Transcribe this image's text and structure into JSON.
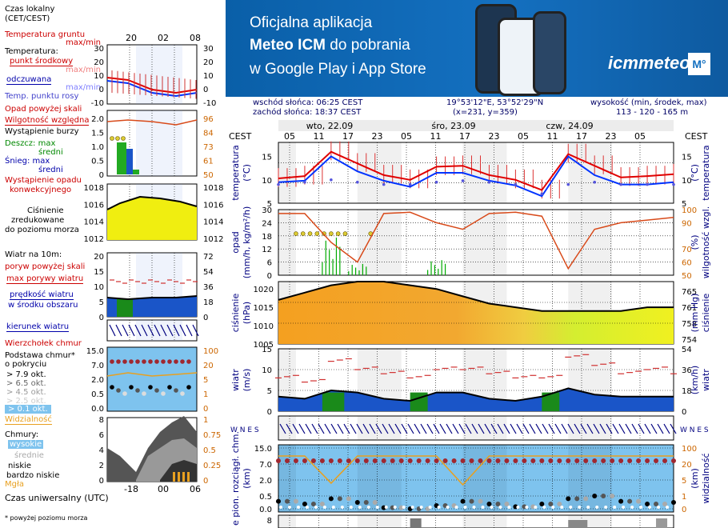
{
  "legend": {
    "czas_lokalny": "Czas lokalny",
    "cet_cest": "(CET/CEST)",
    "temp_gruntu": "Temperatura gruntu",
    "max_min": "max/min",
    "temperatura": "Temperatura:",
    "punkt_srodkowy": "punkt środkowy",
    "max_min2": "max/min",
    "odczuwana": "odczuwana",
    "max_min3": "max/min",
    "temp_punktu_rosy": "Temp. punktu rosy",
    "opad": "Opad powyżej skali",
    "wilgotnosc": "Wilgotność względna",
    "wystapienie_burzy": "Wystąpienie burzy",
    "deszcz_max": "Deszcz: max",
    "sredni": "średni",
    "snieg_max": "Śnieg:   max",
    "sredni2": "średni",
    "wystapienie_opadu": "Wystąpienie opadu",
    "konwekcyjnego": "konwekcyjnego",
    "cisnienie1": "Ciśnienie",
    "cisnienie2": "zredukowane",
    "cisnienie3": "do poziomu morza",
    "wiatr_10m": "Wiatr na 10m:",
    "poryw_powyzej": "poryw powyżej skali",
    "max_porywy": "max porywy wiatru",
    "predkosc1": "prędkość wiatru",
    "predkosc2": "w środku obszaru",
    "kierunek": "kierunek wiatru",
    "wierzcholek": "Wierzchołek chmur",
    "podstawa1": "Podstawa chmur*",
    "podstawa2": "o pokryciu",
    "okt79": "> 7.9 okt.",
    "okt65": "> 6.5 okt.",
    "okt45": "> 4.5 okt.",
    "okt25": "> 2.5 okt.",
    "okt01": "> 0.1 okt.",
    "widzialnosc": "Widzialność",
    "chmury": "Chmury:",
    "wysokie": "wysokie",
    "srednie": "średnie",
    "niskie": "niskie",
    "bardzo_niskie": "bardzo niskie",
    "mgla": "Mgła",
    "czas_uniwersalny": "Czas uniwersalny (UTC)",
    "powyzej_poziomu": "* powyżej poziomu morza"
  },
  "banner": {
    "line1": "Oficjalna aplikacja",
    "line2a": "Meteo ICM",
    "line2b": " do pobrania",
    "line3": "w Google Play i App Store",
    "logo": "icmmeteo",
    "logo_badge": "M°"
  },
  "info": {
    "sunrise": "wschód słońca: 06:25 CEST",
    "sunset": "zachód słońca: 18:37 CEST",
    "coords": "19°53'12\"E, 53°52'29\"N",
    "grid": "(x=231,  y=359)",
    "height_label": "wysokość (min, środek, max)",
    "height_values": "113 - 120 - 165 m"
  },
  "days": [
    "wto, 22.09",
    "śro, 23.09",
    "czw, 24.09"
  ],
  "tz": "CEST",
  "local_hours": [
    "05",
    "11",
    "17",
    "23",
    "05",
    "11",
    "17",
    "23",
    "05",
    "11",
    "17",
    "23",
    "05"
  ],
  "legend_local_hours": [
    "20",
    "02",
    "08"
  ],
  "legend_utc_hours": [
    "-18",
    "00",
    "06"
  ],
  "axis_titles": {
    "temperature": "temperatura",
    "temperature_unit": "(°C)",
    "precip": "opad",
    "precip_unit": "(mm/h, kg/m²/h)",
    "humidity_unit": "(%)",
    "humidity": "wilgotność wzgl.",
    "pressure": "ciśnienie",
    "pressure_unit": "(hPa)",
    "pressure_unit_r": "(mm Hg)",
    "wind": "wiatr",
    "wind_unit": "(m/s)",
    "wind_unit_r": "(km/h)",
    "cloud_left": "e pion. rozciągł. chm.",
    "cloud_unit": "(km)",
    "visibility": "widzialność",
    "vis_unit": "(km)",
    "compass": "W N E S"
  },
  "ticks": {
    "temp_left": [
      "15",
      "10",
      "5"
    ],
    "temp_right": [
      "15",
      "10",
      "5"
    ],
    "precip_left": [
      "30",
      "24",
      "18",
      "12",
      "6",
      "0"
    ],
    "precip_right": [
      "100",
      "90",
      "70",
      "60",
      "50"
    ],
    "press_left": [
      "1020",
      "1015",
      "1010",
      "1005"
    ],
    "press_right": [
      "765",
      "761",
      "758",
      "754"
    ],
    "wind_left": [
      "15",
      "10",
      "5",
      "0"
    ],
    "wind_right": [
      "54",
      "36",
      "18",
      "0"
    ],
    "cloud_left": [
      "15.0",
      "7.0",
      "2.0",
      "0.5",
      "0.0"
    ],
    "cloud_right": [
      "100",
      "20",
      "5",
      "1",
      "0"
    ],
    "bottom_left": [
      "8"
    ],
    "legend_temp_left": [
      "30",
      "20",
      "10",
      "0",
      "-10"
    ],
    "legend_temp_right": [
      "30",
      "20",
      "10",
      "0",
      "-10"
    ],
    "legend_precip_left": [
      "2.0",
      "1.5",
      "1.0",
      "0.5",
      "0"
    ],
    "legend_precip_right": [
      "96",
      "84",
      "73",
      "61",
      "50"
    ],
    "legend_press_left": [
      "1018",
      "1016",
      "1014",
      "1012"
    ],
    "legend_press_right": [
      "1018",
      "1016",
      "1014",
      "1012"
    ],
    "legend_wind_left": [
      "20",
      "15",
      "10",
      "5",
      "0"
    ],
    "legend_wind_right": [
      "72",
      "54",
      "36",
      "18",
      "0"
    ],
    "legend_cloud_left": [
      "15.0",
      "7.0",
      "2.0",
      "0.5",
      "0.0"
    ],
    "legend_cloud_right": [
      "100",
      "20",
      "5",
      "1",
      "0"
    ],
    "legend_clouds_left": [
      "8",
      "6",
      "4",
      "2",
      "0"
    ],
    "legend_clouds_right": [
      "1",
      "0.75",
      "0.5",
      "0.25",
      "0"
    ]
  },
  "colors": {
    "temp": "#e00000",
    "feel": "#0033ff",
    "dew": "#5555dd",
    "humidity": "#d84a1a",
    "rain": "#00aa00",
    "pressure_fill": "#f0a020",
    "wind_fill": "#1a55c8",
    "wind_green": "#1a8a1a",
    "gust": "#d03030",
    "cloud_bg": "#7ec3ee",
    "vis": "#e8a020"
  },
  "chart_data": [
    {
      "type": "line",
      "name": "temperatura",
      "x_hours_from_start": [
        0,
        6,
        12,
        18,
        24,
        30,
        36,
        42,
        48,
        54,
        60,
        66,
        72,
        78,
        84,
        90
      ],
      "series": [
        {
          "name": "punkt środkowy",
          "values": [
            10.3,
            10.8,
            16.0,
            13.5,
            11.0,
            10.0,
            12.8,
            13.0,
            11.0,
            10.0,
            7.8,
            15.5,
            13.0,
            10.5,
            10.8,
            11.2
          ]
        },
        {
          "name": "odczuwana",
          "values": [
            9.5,
            9.8,
            15.0,
            11.8,
            9.8,
            8.5,
            11.5,
            11.5,
            9.8,
            8.8,
            6.5,
            15.0,
            11.0,
            9.0,
            9.0,
            9.5
          ]
        },
        {
          "name": "Temp. punktu rosy",
          "values": [
            9.0,
            9.5,
            10.0,
            9.5,
            9.0,
            9.0,
            9.5,
            9.8,
            9.5,
            9.0,
            7.0,
            9.0,
            9.5,
            9.0,
            9.0,
            9.0
          ]
        }
      ],
      "ylim": [
        5,
        18
      ]
    },
    {
      "type": "bar",
      "name": "opad i wilgotność",
      "humidity_values": [
        97,
        97,
        75,
        60,
        97,
        98,
        90,
        85,
        97,
        98,
        95,
        55,
        85,
        90,
        92,
        94
      ],
      "rain_max_values": [
        0,
        0,
        20,
        6,
        0,
        0,
        8,
        0,
        0,
        0,
        0,
        0,
        0,
        0,
        0,
        0
      ],
      "ylim": [
        0,
        30
      ],
      "humidity_ylim": [
        50,
        100
      ]
    },
    {
      "type": "area",
      "name": "ciśnienie",
      "values": [
        1017,
        1019,
        1021,
        1022,
        1022,
        1021,
        1020,
        1018,
        1016,
        1015,
        1014,
        1014,
        1014,
        1014,
        1015,
        1015
      ],
      "ylim": [
        1005,
        1022
      ]
    },
    {
      "type": "area",
      "name": "wiatr",
      "speed_values": [
        3.5,
        3.0,
        5.0,
        4.5,
        3.0,
        2.5,
        4.5,
        4.5,
        3.0,
        2.5,
        3.5,
        5.5,
        4.0,
        3.5,
        3.5,
        3.5
      ],
      "gust_values": [
        8,
        7,
        12,
        10,
        9,
        8,
        10,
        10,
        9,
        8,
        8,
        13,
        11,
        9,
        10,
        9
      ],
      "ylim": [
        0,
        15
      ]
    },
    {
      "type": "scatter",
      "name": "podstawa chmur i widzialność",
      "visibility_values": [
        20,
        20,
        3,
        20,
        20,
        20,
        20,
        2,
        20,
        20,
        20,
        20,
        20,
        20,
        20,
        20
      ],
      "cloud_base_values": [
        2.0,
        1.5,
        2.5,
        1.8,
        0.8,
        0.6,
        1.2,
        2.0,
        1.5,
        1.0,
        1.5,
        2.5,
        3.0,
        2.0,
        1.5,
        1.8
      ],
      "ylim": [
        0,
        15
      ]
    }
  ]
}
